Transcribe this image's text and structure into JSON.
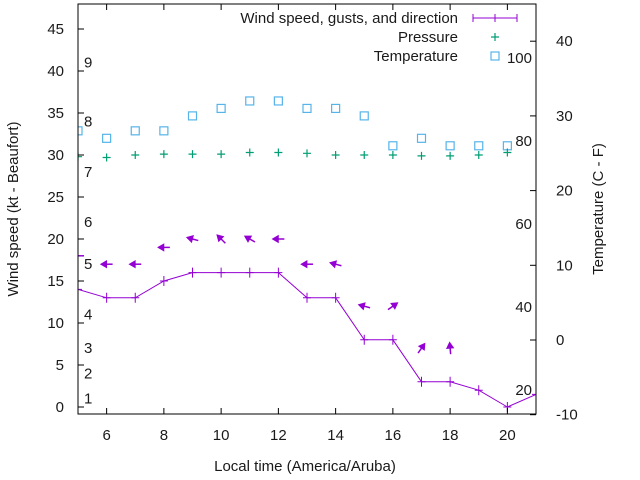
{
  "chart_data": {
    "type": "line",
    "xlabel": "Local time (America/Aruba)",
    "ylabel": "Wind speed (kt - Beaufort)",
    "y2label": "Temperature (C - F)",
    "xlim": [
      5,
      21
    ],
    "ylim": [
      -1,
      48
    ],
    "y2lim": [
      -10,
      45.5
    ],
    "grid": false,
    "legend_position": "top-right",
    "x_ticks": [
      6,
      8,
      10,
      12,
      14,
      16,
      18,
      20
    ],
    "y_ticks": [
      0,
      5,
      10,
      15,
      20,
      25,
      30,
      35,
      40,
      45
    ],
    "y2_ticks": [
      -10,
      0,
      10,
      20,
      30,
      40
    ],
    "beaufort_labels": [
      {
        "label": "1",
        "kt": 1
      },
      {
        "label": "2",
        "kt": 4
      },
      {
        "label": "3",
        "kt": 7
      },
      {
        "label": "4",
        "kt": 11
      },
      {
        "label": "5",
        "kt": 17
      },
      {
        "label": "6",
        "kt": 22
      },
      {
        "label": "7",
        "kt": 28
      },
      {
        "label": "8",
        "kt": 34
      },
      {
        "label": "9",
        "kt": 41
      }
    ],
    "fahrenheit_labels": [
      {
        "label": "20",
        "f": 20
      },
      {
        "label": "40",
        "f": 40
      },
      {
        "label": "60",
        "f": 60
      },
      {
        "label": "80",
        "f": 80
      },
      {
        "label": "100",
        "f": 100
      }
    ],
    "series": [
      {
        "name": "Wind speed, gusts, and direction",
        "color": "#9400d3",
        "x": [
          5,
          6,
          7,
          8,
          9,
          10,
          11,
          12,
          13,
          14,
          15,
          16,
          17,
          18,
          19,
          20,
          21
        ],
        "values": [
          14,
          13,
          13,
          15,
          16,
          16,
          16,
          16,
          13,
          13,
          8,
          8,
          3,
          3,
          2,
          0,
          1.5
        ],
        "gusts_x": [
          5,
          6,
          7,
          8,
          9,
          10,
          11,
          12,
          13,
          14,
          15,
          16,
          17,
          18
        ],
        "gusts": [
          18,
          17,
          17,
          19,
          20,
          20,
          20,
          20,
          17,
          17,
          12,
          12,
          7,
          7
        ],
        "arrow_angle_deg": [
          180,
          180,
          180,
          180,
          165,
          135,
          150,
          180,
          180,
          165,
          165,
          35,
          55,
          95
        ]
      },
      {
        "name": "Pressure",
        "color": "#009e73",
        "x": [
          5,
          6,
          7,
          8,
          9,
          10,
          11,
          12,
          13,
          14,
          15,
          16,
          17,
          18,
          19,
          20
        ],
        "values": [
          29.8,
          29.7,
          30.0,
          30.1,
          30.1,
          30.1,
          30.3,
          30.3,
          30.2,
          30.0,
          30.0,
          30.0,
          29.9,
          29.9,
          30.0,
          30.3
        ]
      },
      {
        "name": "Temperature",
        "color": "#56b4e9",
        "x": [
          5,
          6,
          7,
          8,
          9,
          10,
          11,
          12,
          13,
          14,
          15,
          16,
          17,
          18,
          19,
          20
        ],
        "values": [
          28,
          27,
          28,
          28,
          30,
          31,
          32,
          32,
          31,
          31,
          30,
          26,
          27,
          26,
          26,
          26
        ]
      }
    ]
  }
}
